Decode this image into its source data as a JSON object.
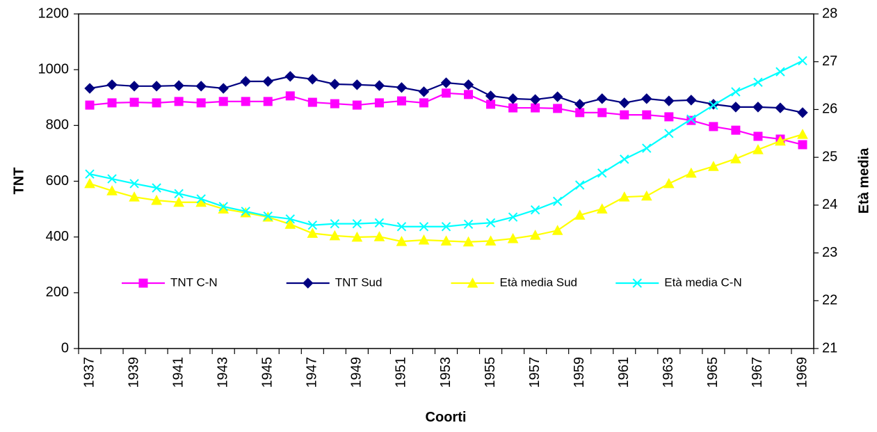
{
  "chart_data": {
    "type": "line",
    "x_label": "Coorti",
    "y_label": "TNT",
    "y2_label": "Età media",
    "categories": [
      "1937",
      null,
      "1939",
      null,
      "1941",
      null,
      "1943",
      null,
      "1945",
      null,
      "1947",
      null,
      "1949",
      null,
      "1951",
      null,
      "1953",
      null,
      "1955",
      null,
      "1957",
      null,
      "1959",
      null,
      "1961",
      null,
      "1963",
      null,
      "1965",
      null,
      "1967",
      null,
      "1969"
    ],
    "ylim": [
      0,
      1200
    ],
    "yticks": [
      0,
      200,
      400,
      600,
      800,
      1000,
      1200
    ],
    "y2lim": [
      21,
      28
    ],
    "y2ticks": [
      21,
      22,
      23,
      24,
      25,
      26,
      27,
      28
    ],
    "grid": false,
    "legend": "bottom",
    "series": [
      {
        "name": "TNT C-N",
        "color": "#ff00ff",
        "marker": "square",
        "values": [
          873,
          881,
          883,
          881,
          886,
          881,
          886,
          886,
          886,
          906,
          883,
          878,
          873,
          881,
          888,
          881,
          916,
          911,
          876,
          863,
          863,
          861,
          846,
          846,
          838,
          838,
          831,
          818,
          796,
          783,
          761,
          751,
          731
        ]
      },
      {
        "name": "TNT Sud",
        "color": "#000080",
        "marker": "diamond",
        "values": [
          933,
          946,
          941,
          941,
          943,
          941,
          933,
          958,
          958,
          976,
          966,
          948,
          946,
          943,
          936,
          921,
          953,
          946,
          906,
          896,
          893,
          903,
          876,
          896,
          881,
          896,
          888,
          891,
          876,
          866,
          866,
          863,
          846
        ]
      },
      {
        "name": "Età media Sud",
        "color": "#ffff00",
        "marker": "triangle",
        "axis": "y2",
        "values": [
          24.45,
          24.3,
          24.17,
          24.1,
          24.06,
          24.06,
          23.92,
          23.84,
          23.75,
          23.6,
          23.41,
          23.36,
          23.33,
          23.34,
          23.24,
          23.27,
          23.25,
          23.23,
          23.25,
          23.3,
          23.37,
          23.47,
          23.79,
          23.92,
          24.17,
          24.19,
          24.45,
          24.67,
          24.81,
          24.97,
          25.16,
          25.34,
          25.48
        ]
      },
      {
        "name": "Età media C-N",
        "color": "#00ffff",
        "marker": "x",
        "axis": "y2",
        "values": [
          24.65,
          24.55,
          24.45,
          24.36,
          24.24,
          24.13,
          23.97,
          23.87,
          23.77,
          23.71,
          23.58,
          23.61,
          23.61,
          23.63,
          23.55,
          23.55,
          23.55,
          23.6,
          23.63,
          23.75,
          23.9,
          24.08,
          24.42,
          24.67,
          24.96,
          25.19,
          25.5,
          25.8,
          26.09,
          26.37,
          26.57,
          26.79,
          27.02
        ]
      }
    ]
  }
}
